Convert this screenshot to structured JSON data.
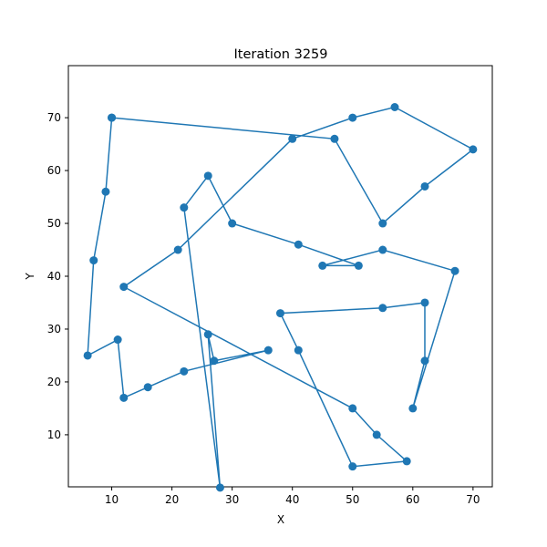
{
  "chart_data": {
    "type": "line",
    "title": "Iteration 3259",
    "xlabel": "X",
    "ylabel": "Y",
    "xlim": [
      2.8,
      73.2
    ],
    "ylim": [
      0.15,
      79.85
    ],
    "xticks": [
      10,
      20,
      30,
      40,
      50,
      60,
      70
    ],
    "yticks": [
      10,
      20,
      30,
      40,
      50,
      60,
      70
    ],
    "grid": false,
    "color": "#1f77b4",
    "series": [
      {
        "x": [
          10,
          47,
          55,
          62,
          70,
          57,
          50,
          40,
          21,
          12,
          50,
          54,
          59,
          50,
          41,
          38,
          55,
          62,
          62,
          60,
          67,
          55,
          45,
          51,
          41,
          30,
          26,
          22,
          28,
          26,
          27,
          36,
          22,
          16,
          12,
          11,
          6,
          7,
          9,
          10
        ],
        "y": [
          70,
          66,
          50,
          57,
          64,
          72,
          70,
          66,
          45,
          38,
          15,
          10,
          5,
          4,
          26,
          33,
          34,
          35,
          24,
          15,
          41,
          45,
          42,
          42,
          46,
          50,
          59,
          53,
          0,
          29,
          24,
          26,
          22,
          19,
          17,
          28,
          25,
          43,
          56,
          70
        ]
      }
    ],
    "note": "Polyline traces through city points; values approximate."
  }
}
